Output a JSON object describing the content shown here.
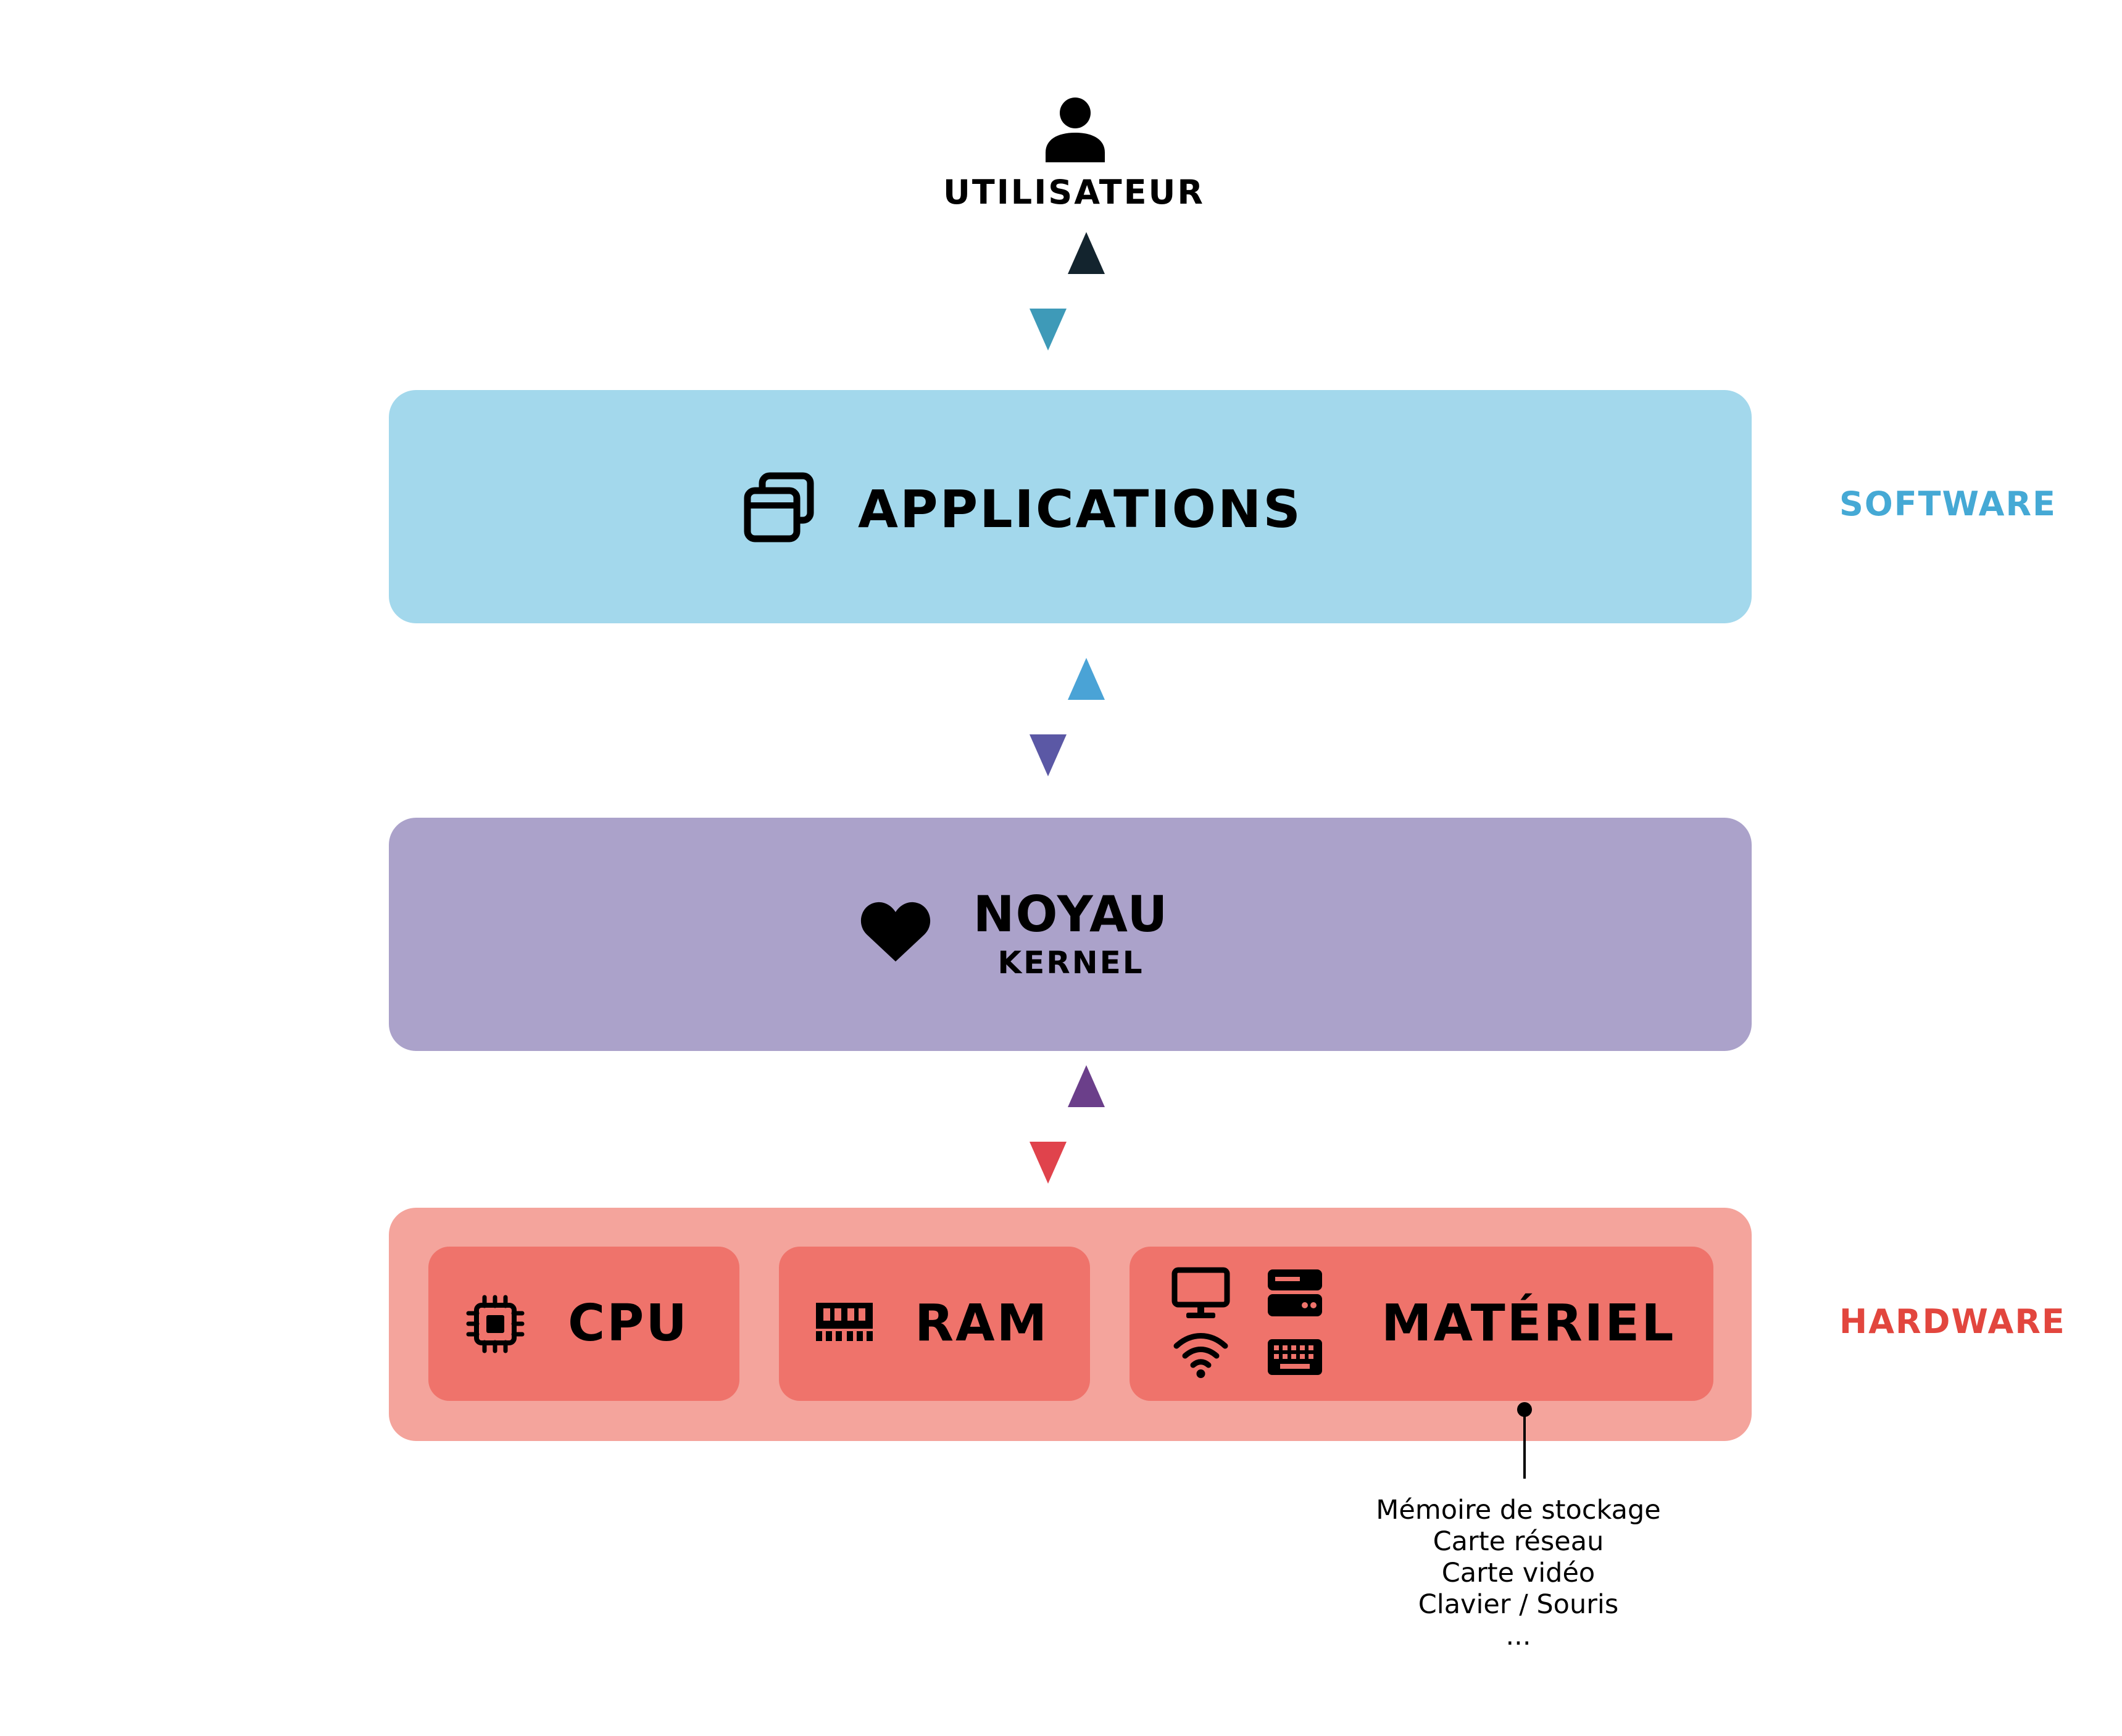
{
  "user": {
    "label": "UTILISATEUR",
    "icon": "user-icon"
  },
  "layers": {
    "applications": {
      "label": "APPLICATIONS",
      "icon": "windows-icon",
      "color": "#a3d8ec"
    },
    "kernel": {
      "label": "NOYAU",
      "sublabel": "KERNEL",
      "icon": "heart-icon",
      "color": "#aba2ca"
    },
    "hardware": {
      "color": "#f4a49c",
      "box_color": "#ef736b",
      "components": [
        {
          "label": "CPU",
          "icon": "cpu-icon"
        },
        {
          "label": "RAM",
          "icon": "ram-icon"
        },
        {
          "label": "MATÉRIEL",
          "icons": [
            "monitor-icon",
            "drive-icon",
            "wifi-icon",
            "keyboard-icon"
          ]
        }
      ],
      "details": [
        "Mémoire de stockage",
        "Carte réseau",
        "Carte vidéo",
        "Clavier / Souris",
        "..."
      ]
    }
  },
  "side_labels": {
    "software": {
      "text": "SOFTWARE",
      "color": "#45a9d5"
    },
    "hardware": {
      "text": "HARDWARE",
      "color": "#e2463e"
    }
  }
}
